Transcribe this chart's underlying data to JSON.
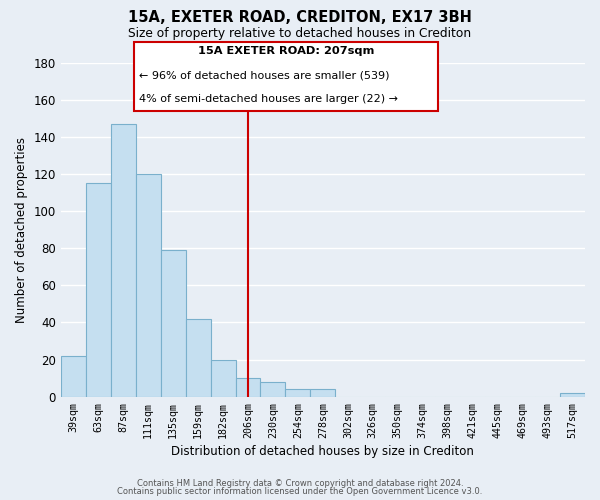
{
  "title": "15A, EXETER ROAD, CREDITON, EX17 3BH",
  "subtitle": "Size of property relative to detached houses in Crediton",
  "xlabel": "Distribution of detached houses by size in Crediton",
  "ylabel": "Number of detached properties",
  "bar_color": "#c5dff0",
  "bar_edge_color": "#7ab0cc",
  "bin_labels": [
    "39sqm",
    "63sqm",
    "87sqm",
    "111sqm",
    "135sqm",
    "159sqm",
    "182sqm",
    "206sqm",
    "230sqm",
    "254sqm",
    "278sqm",
    "302sqm",
    "326sqm",
    "350sqm",
    "374sqm",
    "398sqm",
    "421sqm",
    "445sqm",
    "469sqm",
    "493sqm",
    "517sqm"
  ],
  "bar_heights": [
    22,
    115,
    147,
    120,
    79,
    42,
    20,
    10,
    8,
    4,
    4,
    0,
    0,
    0,
    0,
    0,
    0,
    0,
    0,
    0,
    2
  ],
  "ylim": [
    0,
    180
  ],
  "yticks": [
    0,
    20,
    40,
    60,
    80,
    100,
    120,
    140,
    160,
    180
  ],
  "property_line_x": 7,
  "property_line_color": "#cc0000",
  "annotation_title": "15A EXETER ROAD: 207sqm",
  "annotation_line1": "← 96% of detached houses are smaller (539)",
  "annotation_line2": "4% of semi-detached houses are larger (22) →",
  "annotation_box_facecolor": "#ffffff",
  "annotation_box_edgecolor": "#cc0000",
  "footer_line1": "Contains HM Land Registry data © Crown copyright and database right 2024.",
  "footer_line2": "Contains public sector information licensed under the Open Government Licence v3.0.",
  "background_color": "#e8eef5",
  "grid_color": "#ffffff",
  "grid_linewidth": 1.0
}
